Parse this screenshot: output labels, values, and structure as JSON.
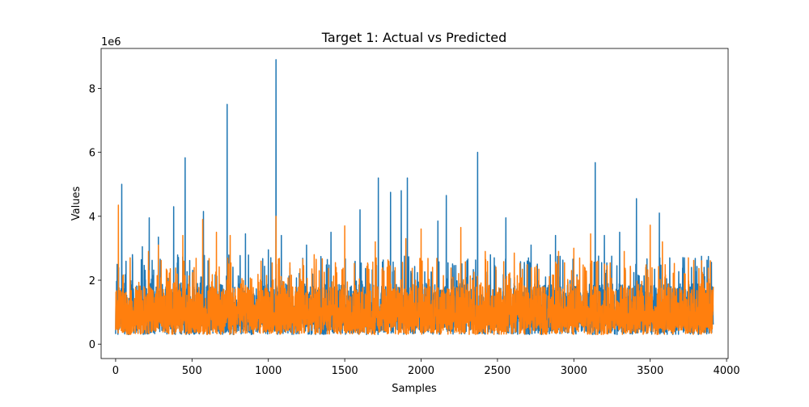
{
  "chart_data": {
    "type": "line",
    "title": "Target 1: Actual vs Predicted",
    "xlabel": "Samples",
    "ylabel": "Values",
    "y_offset_label": "1e6",
    "xlim": [
      -95,
      4010
    ],
    "ylim": [
      -0.45,
      9.25
    ],
    "y_scale": 1000000,
    "x_ticks": [
      0,
      500,
      1000,
      1500,
      2000,
      2500,
      3000,
      3500,
      4000
    ],
    "x_tick_labels": [
      "0",
      "500",
      "1000",
      "1500",
      "2000",
      "2500",
      "3000",
      "3500",
      "4000"
    ],
    "y_ticks": [
      0,
      2,
      4,
      6,
      8
    ],
    "y_tick_labels": [
      "0",
      "2",
      "4",
      "6",
      "8"
    ],
    "grid": false,
    "legend": "none",
    "colors": {
      "actual": "#1f77b4",
      "predicted": "#ff7f0e"
    },
    "series": [
      {
        "key": "actual",
        "color": "#1f77b4",
        "n_points": 3914,
        "baseline_range": [
          0.3,
          1.3
        ],
        "typical_high": 1.9,
        "peaks": [
          [
            40,
            5.0
          ],
          [
            110,
            2.8
          ],
          [
            175,
            3.05
          ],
          [
            220,
            3.95
          ],
          [
            280,
            3.35
          ],
          [
            380,
            4.3
          ],
          [
            455,
            5.83
          ],
          [
            575,
            4.15
          ],
          [
            730,
            7.5
          ],
          [
            850,
            3.45
          ],
          [
            1000,
            2.95
          ],
          [
            1050,
            8.9
          ],
          [
            1085,
            3.4
          ],
          [
            1250,
            3.1
          ],
          [
            1410,
            3.5
          ],
          [
            1600,
            4.2
          ],
          [
            1720,
            5.2
          ],
          [
            1800,
            4.75
          ],
          [
            1870,
            4.8
          ],
          [
            1910,
            5.2
          ],
          [
            2110,
            3.85
          ],
          [
            2165,
            4.65
          ],
          [
            2370,
            6.0
          ],
          [
            2555,
            3.95
          ],
          [
            2720,
            3.1
          ],
          [
            2880,
            3.4
          ],
          [
            3140,
            5.68
          ],
          [
            3200,
            3.4
          ],
          [
            3300,
            3.5
          ],
          [
            3410,
            4.55
          ],
          [
            3560,
            4.1
          ],
          [
            3770,
            2.4
          ]
        ]
      },
      {
        "key": "predicted",
        "color": "#ff7f0e",
        "n_points": 3914,
        "baseline_range": [
          0.3,
          1.2
        ],
        "typical_high": 1.8,
        "peaks": [
          [
            18,
            4.35
          ],
          [
            95,
            2.7
          ],
          [
            215,
            2.9
          ],
          [
            280,
            3.1
          ],
          [
            440,
            3.4
          ],
          [
            570,
            3.9
          ],
          [
            660,
            3.5
          ],
          [
            750,
            3.4
          ],
          [
            1050,
            4.0
          ],
          [
            1300,
            2.8
          ],
          [
            1500,
            3.7
          ],
          [
            1700,
            3.2
          ],
          [
            1900,
            3.3
          ],
          [
            2000,
            3.6
          ],
          [
            2260,
            3.65
          ],
          [
            2420,
            2.9
          ],
          [
            2610,
            2.85
          ],
          [
            2900,
            2.9
          ],
          [
            3000,
            3.0
          ],
          [
            3110,
            3.45
          ],
          [
            3330,
            2.9
          ],
          [
            3500,
            3.72
          ],
          [
            3580,
            3.2
          ],
          [
            3750,
            2.7
          ],
          [
            3850,
            2.0
          ]
        ]
      }
    ]
  }
}
